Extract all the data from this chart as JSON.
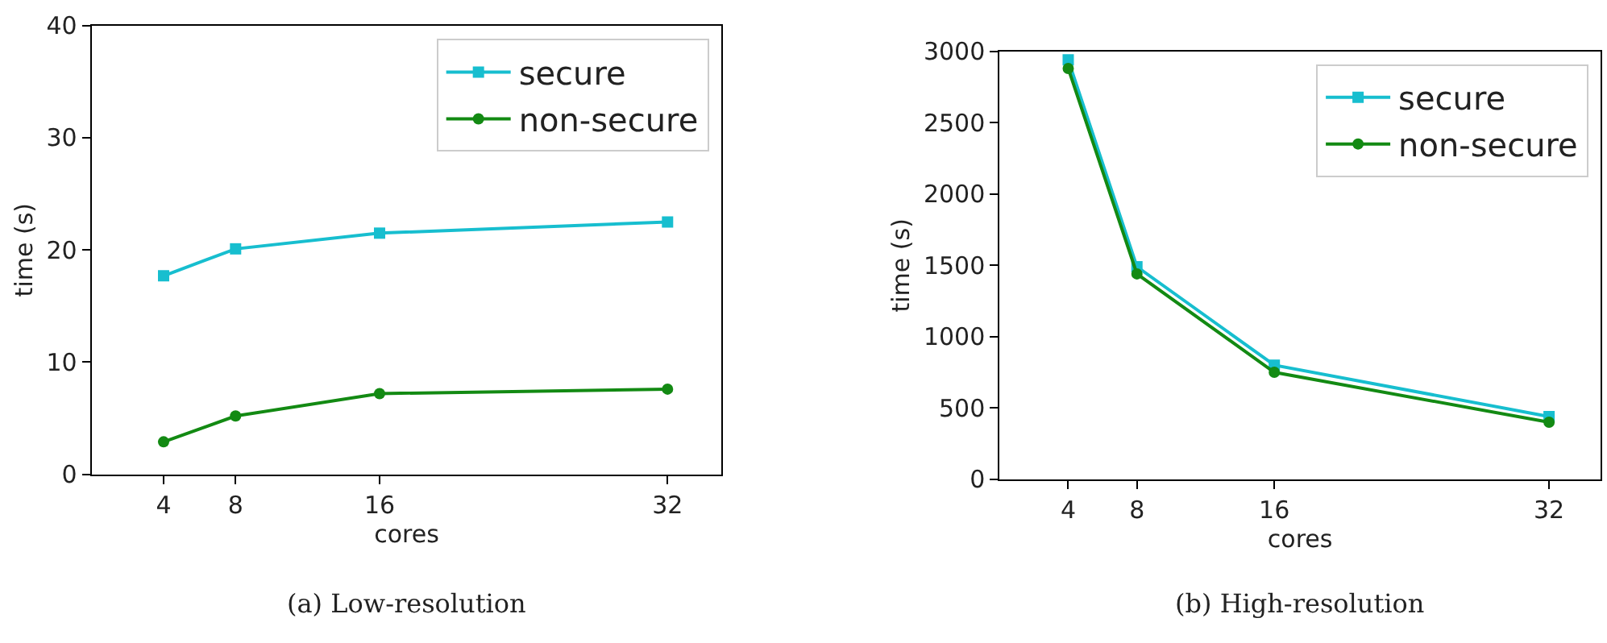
{
  "chart_data": [
    {
      "type": "line",
      "xlabel": "cores",
      "ylabel": "time (s)",
      "x": [
        4,
        8,
        16,
        32
      ],
      "xlim": [
        0,
        35
      ],
      "xticks": [
        4,
        8,
        16,
        32
      ],
      "ylim": [
        0,
        40
      ],
      "yticks": [
        0,
        10,
        20,
        30,
        40
      ],
      "legend": "top right",
      "annotations": [
        "(a) Low-resolution"
      ],
      "series": [
        {
          "name": "secure",
          "color": "#17becf",
          "marker": "square",
          "values": [
            17.7,
            20.1,
            21.5,
            22.5
          ]
        },
        {
          "name": "non-secure",
          "color": "#138a13",
          "marker": "circle",
          "values": [
            2.9,
            5.2,
            7.2,
            7.6
          ]
        }
      ]
    },
    {
      "type": "line",
      "xlabel": "cores",
      "ylabel": "time (s)",
      "x": [
        4,
        8,
        16,
        32
      ],
      "xlim": [
        0,
        35
      ],
      "xticks": [
        4,
        8,
        16,
        32
      ],
      "ylim": [
        0,
        3000
      ],
      "yticks": [
        0,
        500,
        1000,
        1500,
        2000,
        2500,
        3000
      ],
      "legend": "top right",
      "annotations": [
        "(b) High-resolution"
      ],
      "series": [
        {
          "name": "secure",
          "color": "#17becf",
          "marker": "square",
          "values": [
            2940,
            1490,
            800,
            440
          ]
        },
        {
          "name": "non-secure",
          "color": "#138a13",
          "marker": "circle",
          "values": [
            2880,
            1440,
            750,
            400
          ]
        }
      ]
    }
  ]
}
